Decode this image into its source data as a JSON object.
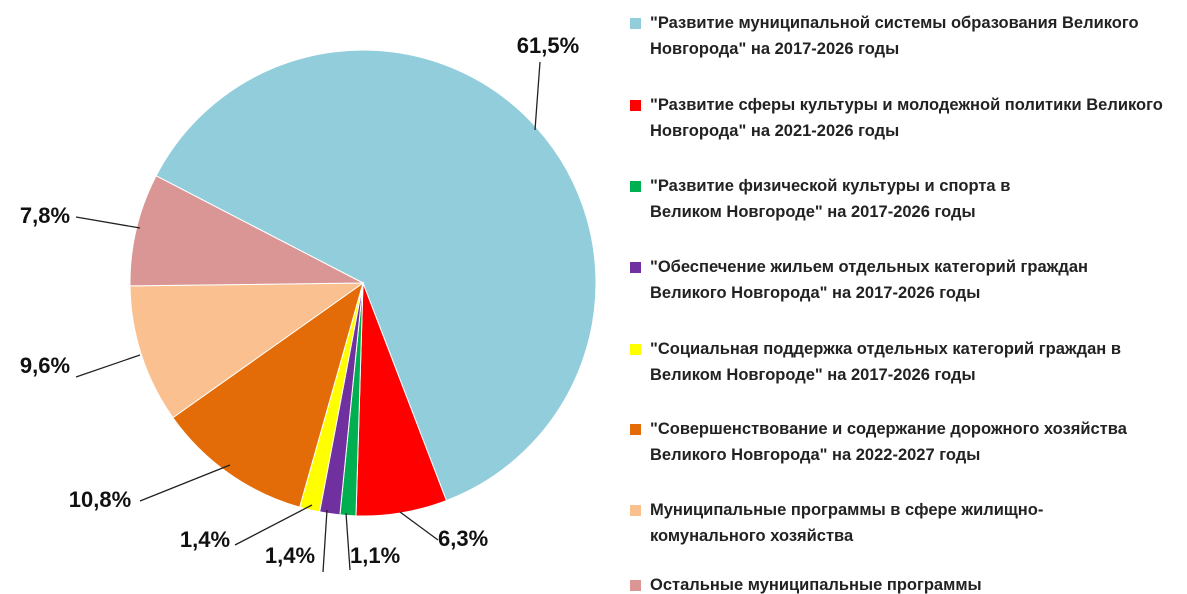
{
  "chart_data": {
    "type": "pie",
    "categories": [
      "\"Развитие муниципальной системы образования Великого Новгорода\" на 2017-2026 годы",
      "\"Развитие сферы культуры и молодежной политики Великого Новгорода\" на 2021-2026 годы",
      "\"Развитие физической культуры и спорта в Великом Новгороде\" на 2017-2026 годы",
      "\"Обеспечение жильем отдельных категорий граждан Великого Новгорода\" на 2017-2026 годы",
      "\"Социальная поддержка отдельных категорий граждан в Великом Новгороде\" на 2017-2026 годы",
      "\"Совершенствование и содержание дорожного хозяйства Великого Новгорода\" на 2022-2027 годы",
      "Муниципальные программы в сфере жилищно-комунального хозяйства",
      "Остальные муниципальные программы"
    ],
    "values": [
      61.5,
      6.3,
      1.1,
      1.4,
      1.4,
      10.8,
      9.6,
      7.8
    ],
    "value_labels": [
      "61,5%",
      "6,3%",
      "1,1%",
      "1,4%",
      "1,4%",
      "10,8%",
      "9,6%",
      "7,8%"
    ],
    "colors": [
      "#92cddc",
      "#ff0000",
      "#00b050",
      "#7030a0",
      "#ffff00",
      "#e36c09",
      "#fac090",
      "#d99694"
    ]
  }
}
